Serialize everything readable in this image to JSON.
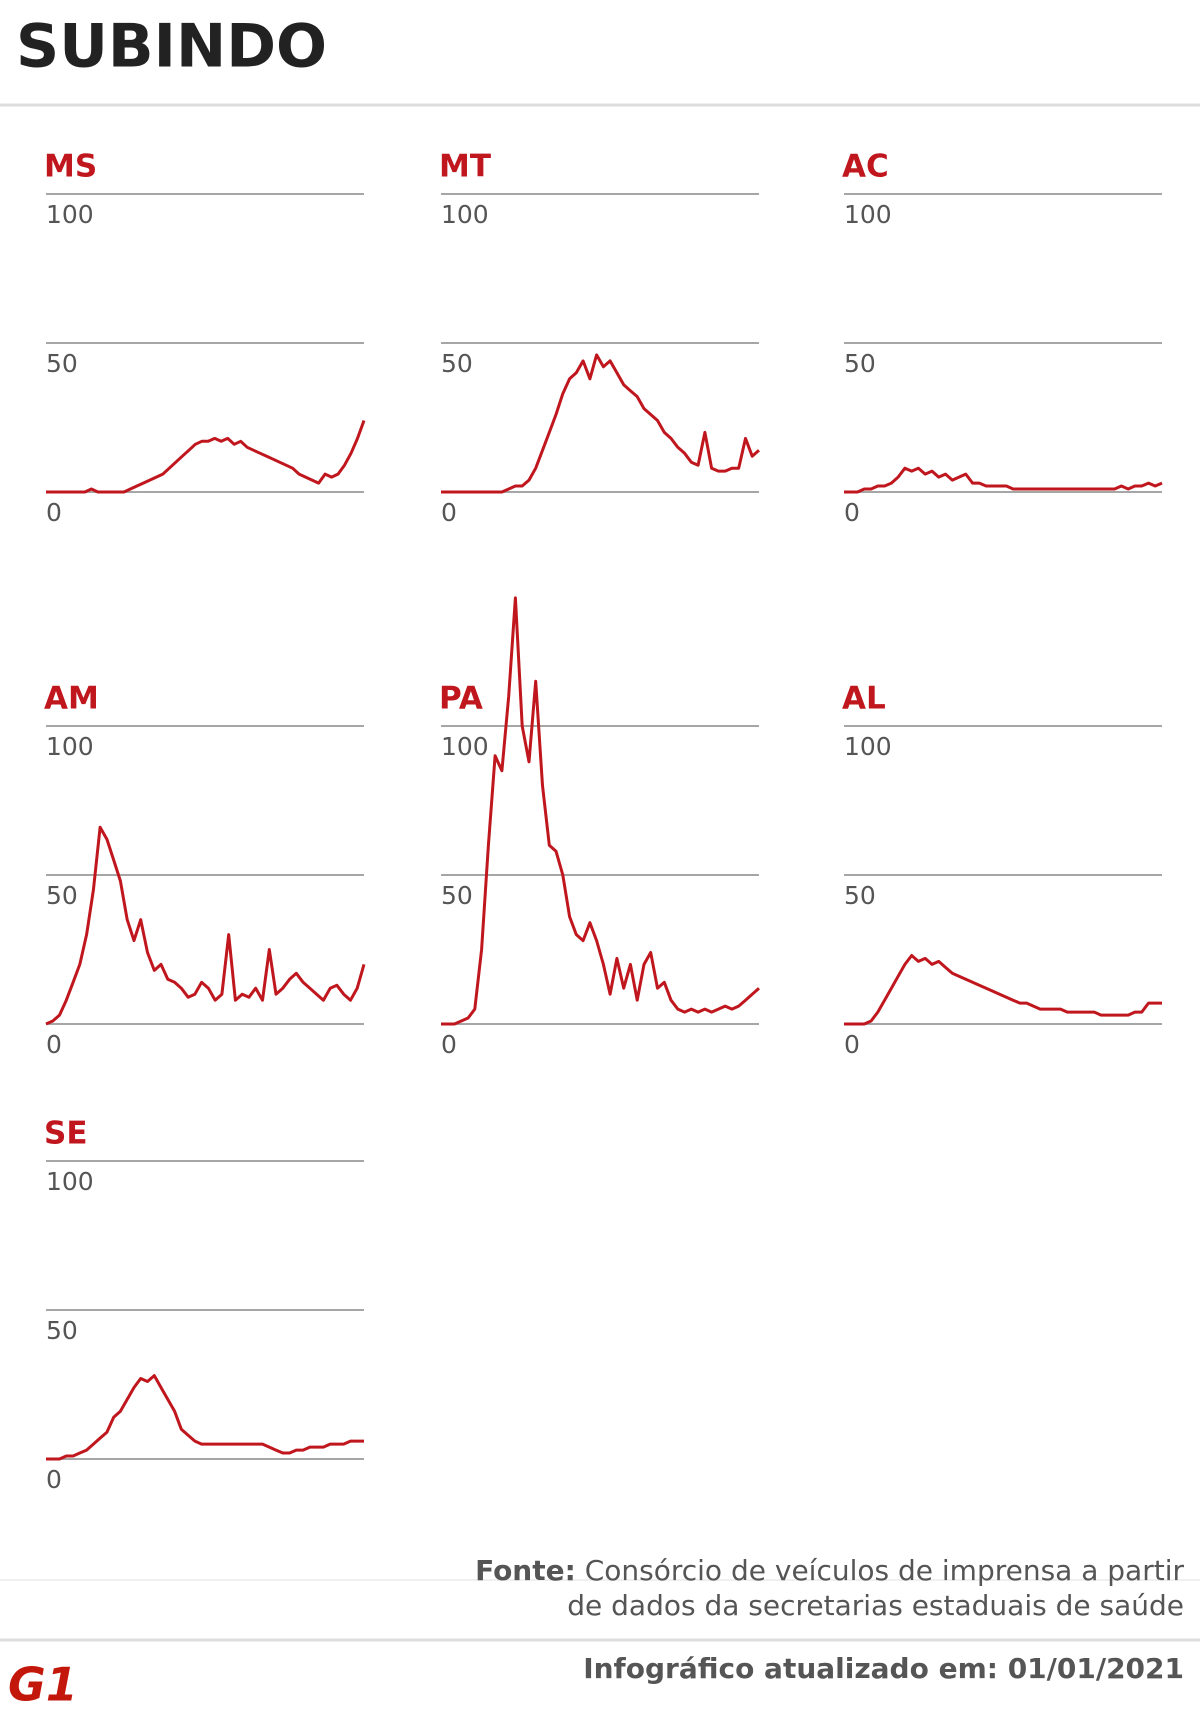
{
  "header": {
    "title": "SUBINDO"
  },
  "chart_data": [
    {
      "type": "line",
      "title": "MS",
      "color": "#c0161d",
      "ylim": [
        0,
        100
      ],
      "yticks": [
        0,
        50,
        100
      ],
      "grid": true,
      "values": [
        0,
        0,
        0,
        0,
        0,
        0,
        0,
        1,
        0,
        0,
        0,
        0,
        0,
        1,
        2,
        3,
        4,
        5,
        6,
        8,
        10,
        12,
        14,
        16,
        17,
        17,
        18,
        17,
        18,
        16,
        17,
        15,
        14,
        13,
        12,
        11,
        10,
        9,
        8,
        6,
        5,
        4,
        3,
        6,
        5,
        6,
        9,
        13,
        18,
        24
      ]
    },
    {
      "type": "line",
      "title": "MT",
      "color": "#c0161d",
      "ylim": [
        0,
        100
      ],
      "yticks": [
        0,
        50,
        100
      ],
      "grid": true,
      "values": [
        0,
        0,
        0,
        0,
        0,
        0,
        0,
        0,
        0,
        0,
        1,
        2,
        2,
        4,
        8,
        14,
        20,
        26,
        33,
        38,
        40,
        44,
        38,
        46,
        42,
        44,
        40,
        36,
        34,
        32,
        28,
        26,
        24,
        20,
        18,
        15,
        13,
        10,
        9,
        20,
        8,
        7,
        7,
        8,
        8,
        18,
        12,
        14
      ]
    },
    {
      "type": "line",
      "title": "AC",
      "color": "#c0161d",
      "ylim": [
        0,
        100
      ],
      "yticks": [
        0,
        50,
        100
      ],
      "grid": true,
      "values": [
        0,
        0,
        0,
        1,
        1,
        2,
        2,
        3,
        5,
        8,
        7,
        8,
        6,
        7,
        5,
        6,
        4,
        5,
        6,
        3,
        3,
        2,
        2,
        2,
        2,
        1,
        1,
        1,
        1,
        1,
        1,
        1,
        1,
        1,
        1,
        1,
        1,
        1,
        1,
        1,
        1,
        2,
        1,
        2,
        2,
        3,
        2,
        3
      ]
    },
    {
      "type": "line",
      "title": "AM",
      "color": "#c0161d",
      "ylim": [
        0,
        100
      ],
      "yticks": [
        0,
        50,
        100
      ],
      "grid": true,
      "values": [
        0,
        1,
        3,
        8,
        14,
        20,
        30,
        45,
        66,
        62,
        55,
        48,
        35,
        28,
        35,
        24,
        18,
        20,
        15,
        14,
        12,
        9,
        10,
        14,
        12,
        8,
        10,
        30,
        8,
        10,
        9,
        12,
        8,
        25,
        10,
        12,
        15,
        17,
        14,
        12,
        10,
        8,
        12,
        13,
        10,
        8,
        12,
        20
      ]
    },
    {
      "type": "line",
      "title": "PA",
      "color": "#c0161d",
      "ylim": [
        0,
        100
      ],
      "yticks": [
        0,
        50,
        100
      ],
      "grid": true,
      "values": [
        0,
        0,
        0,
        1,
        2,
        5,
        25,
        60,
        90,
        85,
        110,
        143,
        100,
        88,
        115,
        80,
        60,
        58,
        50,
        36,
        30,
        28,
        34,
        28,
        20,
        10,
        22,
        12,
        20,
        8,
        20,
        24,
        12,
        14,
        8,
        5,
        4,
        5,
        4,
        5,
        4,
        5,
        6,
        5,
        6,
        8,
        10,
        12
      ]
    },
    {
      "type": "line",
      "title": "AL",
      "color": "#c0161d",
      "ylim": [
        0,
        100
      ],
      "yticks": [
        0,
        50,
        100
      ],
      "grid": true,
      "values": [
        0,
        0,
        0,
        0,
        1,
        4,
        8,
        12,
        16,
        20,
        23,
        21,
        22,
        20,
        21,
        19,
        17,
        16,
        15,
        14,
        13,
        12,
        11,
        10,
        9,
        8,
        7,
        7,
        6,
        5,
        5,
        5,
        5,
        4,
        4,
        4,
        4,
        4,
        3,
        3,
        3,
        3,
        3,
        4,
        4,
        7,
        7,
        7
      ]
    },
    {
      "type": "line",
      "title": "SE",
      "color": "#c0161d",
      "ylim": [
        0,
        100
      ],
      "yticks": [
        0,
        50,
        100
      ],
      "grid": true,
      "values": [
        0,
        0,
        0,
        1,
        1,
        2,
        3,
        5,
        7,
        9,
        14,
        16,
        20,
        24,
        27,
        26,
        28,
        24,
        20,
        16,
        10,
        8,
        6,
        5,
        5,
        5,
        5,
        5,
        5,
        5,
        5,
        5,
        5,
        4,
        3,
        2,
        2,
        3,
        3,
        4,
        4,
        4,
        5,
        5,
        5,
        6,
        6,
        6
      ]
    }
  ],
  "footer": {
    "source_label": "Fonte:",
    "source_lines": [
      "Consórcio de veículos de imprensa a partir",
      "de dados da secretarias estaduais de saúde"
    ],
    "updated": "Infográfico atualizado em: 01/01/2021",
    "logo": "G1"
  }
}
